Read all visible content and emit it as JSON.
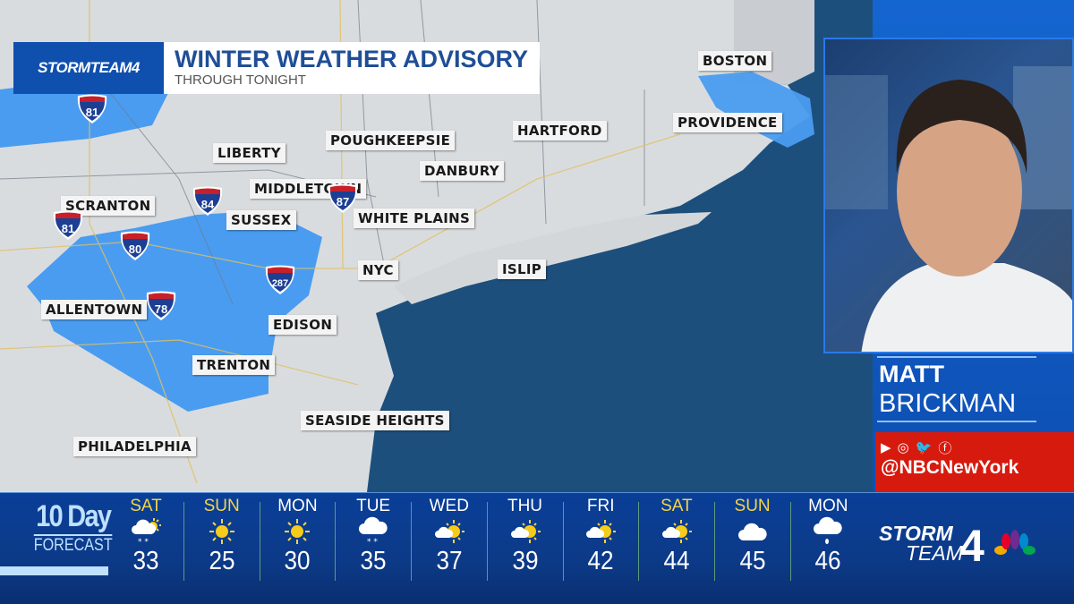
{
  "banner": {
    "brand": "STORMTEAM4",
    "title": "WINTER WEATHER ADVISORY",
    "subtitle": "THROUGH TONIGHT"
  },
  "map": {
    "colors": {
      "land": "#d9dcdf",
      "ocean": "#1d4f7d",
      "advisory": "#4a9cf0"
    },
    "places": [
      "BOSTON",
      "PROVIDENCE",
      "HARTFORD",
      "POUGHKEEPSIE",
      "LIBERTY",
      "DANBURY",
      "MIDDLETOWN",
      "SCRANTON",
      "SUSSEX",
      "WHITE PLAINS",
      "NYC",
      "ISLIP",
      "ALLENTOWN",
      "EDISON",
      "TRENTON",
      "SEASIDE HEIGHTS",
      "PHILADELPHIA"
    ],
    "interstates": [
      "81",
      "81",
      "84",
      "80",
      "78",
      "287",
      "87"
    ]
  },
  "presenter": {
    "first": "MATT",
    "last": "BRICKMAN",
    "social_icons": [
      "youtube-icon",
      "instagram-icon",
      "twitter-icon",
      "facebook-icon"
    ],
    "handle": "@NBCNewYork"
  },
  "forecast": {
    "title": "10 Day",
    "subtitle": "FORECAST",
    "days": [
      {
        "day": "SAT",
        "weekend": true,
        "icon": "snow-sun",
        "temp": "33"
      },
      {
        "day": "SUN",
        "weekend": true,
        "icon": "sunny",
        "temp": "25"
      },
      {
        "day": "MON",
        "weekend": false,
        "icon": "sunny",
        "temp": "30"
      },
      {
        "day": "TUE",
        "weekend": false,
        "icon": "snow",
        "temp": "35"
      },
      {
        "day": "WED",
        "weekend": false,
        "icon": "partly-sunny",
        "temp": "37"
      },
      {
        "day": "THU",
        "weekend": false,
        "icon": "partly-sunny",
        "temp": "39"
      },
      {
        "day": "FRI",
        "weekend": false,
        "icon": "partly-sunny",
        "temp": "42"
      },
      {
        "day": "SAT",
        "weekend": true,
        "icon": "partly-sunny",
        "temp": "44"
      },
      {
        "day": "SUN",
        "weekend": true,
        "icon": "cloudy",
        "temp": "45"
      },
      {
        "day": "MON",
        "weekend": false,
        "icon": "rain",
        "temp": "46"
      }
    ]
  },
  "logo": {
    "storm": "STORM",
    "team": "TEAM",
    "four": "4"
  }
}
